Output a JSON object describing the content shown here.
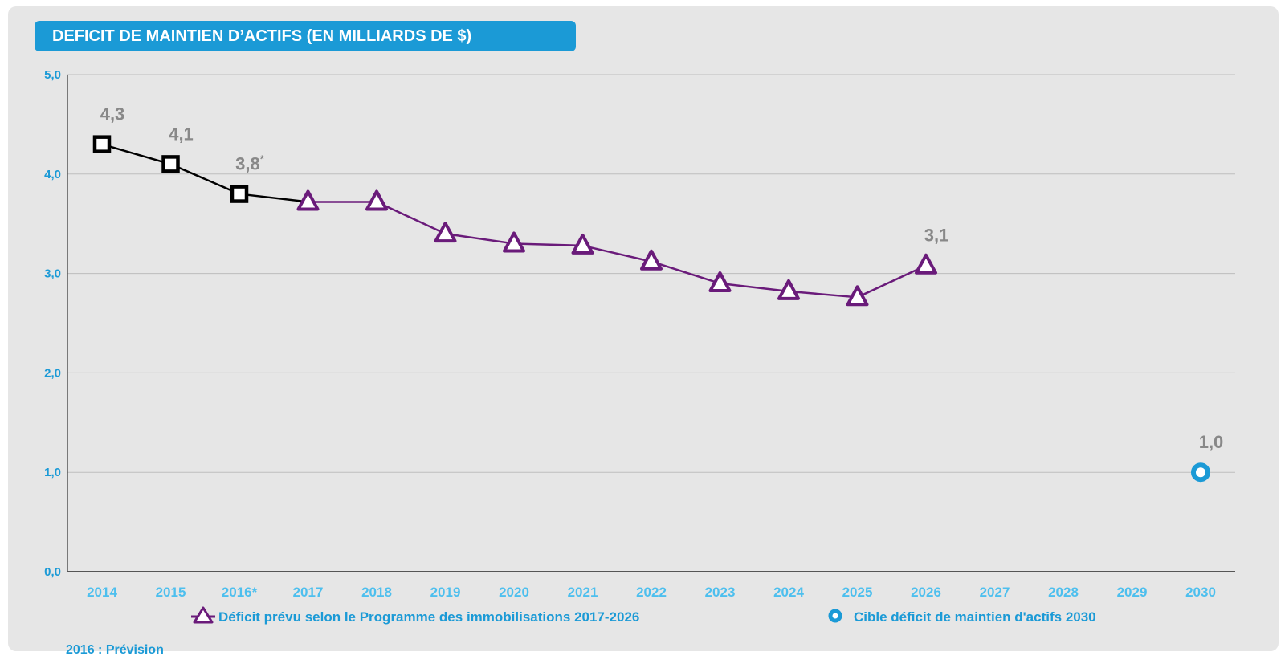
{
  "title": "DEFICIT DE MAINTIEN D’ACTIFS (EN MILLIARDS DE $)",
  "footnote": "2016 : Prévision",
  "colors": {
    "accent": "#1b9ad6",
    "xtick": "#4dbfee",
    "actual": "#000000",
    "forecast": "#6a1b7a",
    "target": "#1b9ad6",
    "label": "#888888"
  },
  "chart_data": {
    "type": "line",
    "categories": [
      "2014",
      "2015",
      "2016*",
      "2017",
      "2018",
      "2019",
      "2020",
      "2021",
      "2022",
      "2023",
      "2024",
      "2025",
      "2026",
      "2027",
      "2028",
      "2029",
      "2030"
    ],
    "y_tick_labels": [
      "0,0",
      "1,0",
      "2,0",
      "3,0",
      "4,0",
      "5,0"
    ],
    "ylim": [
      0,
      5
    ],
    "grid": true,
    "series": [
      {
        "key": "actual",
        "marker": "square",
        "values": [
          4.3,
          4.1,
          3.8,
          3.72,
          null,
          null,
          null,
          null,
          null,
          null,
          null,
          null,
          null,
          null,
          null,
          null,
          null
        ]
      },
      {
        "key": "forecast",
        "marker": "triangle",
        "name": "Déficit prévu selon le Programme des immobilisations 2017-2026",
        "values": [
          null,
          null,
          null,
          3.72,
          3.72,
          3.4,
          3.3,
          3.28,
          3.12,
          2.9,
          2.82,
          2.76,
          3.08,
          null,
          null,
          null,
          null
        ]
      },
      {
        "key": "target",
        "marker": "circle",
        "name": "Cible déficit de maintien d'actifs 2030",
        "values": [
          null,
          null,
          null,
          null,
          null,
          null,
          null,
          null,
          null,
          null,
          null,
          null,
          null,
          null,
          null,
          null,
          1.0
        ]
      }
    ],
    "data_labels": [
      {
        "category": "2014",
        "value": 4.3,
        "text": "4,3"
      },
      {
        "category": "2015",
        "value": 4.1,
        "text": "4,1"
      },
      {
        "category": "2016*",
        "value": 3.8,
        "text": "3,8",
        "sup": "*"
      },
      {
        "category": "2026",
        "value": 3.08,
        "text": "3,1"
      },
      {
        "category": "2030",
        "value": 1.0,
        "text": "1,0"
      }
    ],
    "legend_position": "bottom"
  }
}
